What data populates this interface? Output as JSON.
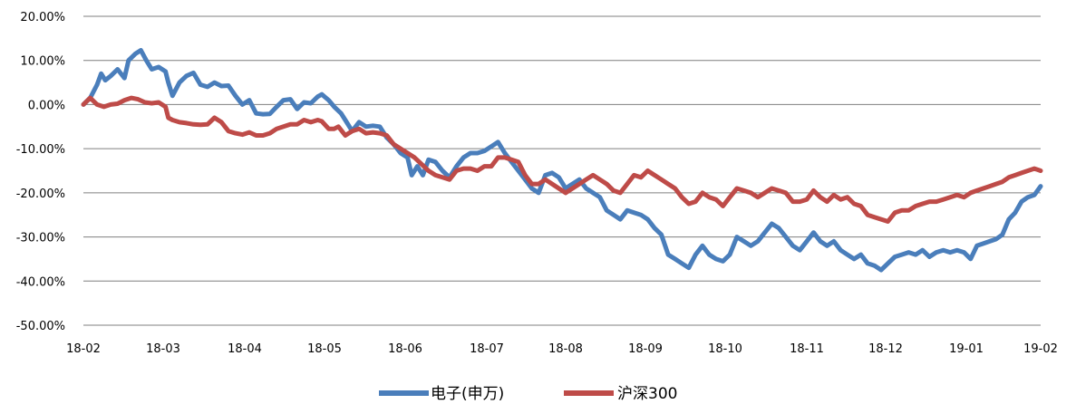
{
  "chart_data": {
    "type": "line",
    "title": "",
    "xlabel": "",
    "ylabel": "",
    "x_ticks": [
      "18-02",
      "18-03",
      "18-04",
      "18-05",
      "18-06",
      "18-07",
      "18-08",
      "18-09",
      "18-10",
      "18-11",
      "18-12",
      "19-01",
      "19-02"
    ],
    "y_ticks": [
      20,
      10,
      0,
      -10,
      -20,
      -30,
      -40,
      -50
    ],
    "y_tick_labels": [
      "20.00%",
      "10.00%",
      "0.00%",
      "-10.00%",
      "-20.00%",
      "-30.00%",
      "-40.00%",
      "-50.00%"
    ],
    "ylim": [
      -50,
      20
    ],
    "y_unit": "%",
    "grid": "horizontal",
    "legend": "bottom-center",
    "series": [
      {
        "name": "电子(申万)",
        "color": "#4a7ebb",
        "points": [
          [
            0,
            0
          ],
          [
            0.05,
            1.5
          ],
          [
            0.1,
            4.5
          ],
          [
            0.13,
            7
          ],
          [
            0.16,
            5.5
          ],
          [
            0.2,
            6.5
          ],
          [
            0.25,
            8
          ],
          [
            0.3,
            6
          ],
          [
            0.33,
            10
          ],
          [
            0.38,
            11.5
          ],
          [
            0.42,
            12.3
          ],
          [
            0.46,
            10
          ],
          [
            0.5,
            8
          ],
          [
            0.55,
            8.5
          ],
          [
            0.6,
            7.5
          ],
          [
            0.62,
            5
          ],
          [
            0.65,
            2
          ],
          [
            0.7,
            5
          ],
          [
            0.75,
            6.5
          ],
          [
            0.8,
            7.2
          ],
          [
            0.85,
            4.5
          ],
          [
            0.9,
            4
          ],
          [
            0.95,
            5
          ],
          [
            1.0,
            4.2
          ],
          [
            1.05,
            4.3
          ],
          [
            1.1,
            2
          ],
          [
            1.15,
            0
          ],
          [
            1.2,
            1
          ],
          [
            1.25,
            -2
          ],
          [
            1.3,
            -2.2
          ],
          [
            1.35,
            -2.1
          ],
          [
            1.4,
            -0.5
          ],
          [
            1.45,
            1
          ],
          [
            1.5,
            1.2
          ],
          [
            1.55,
            -1
          ],
          [
            1.6,
            0.5
          ],
          [
            1.65,
            0.3
          ],
          [
            1.7,
            1.8
          ],
          [
            1.73,
            2.3
          ],
          [
            1.78,
            1
          ],
          [
            1.82,
            -0.5
          ],
          [
            1.87,
            -2
          ],
          [
            1.9,
            -3.5
          ],
          [
            1.95,
            -6
          ],
          [
            2.0,
            -4
          ],
          [
            2.05,
            -5
          ],
          [
            2.1,
            -4.8
          ],
          [
            2.15,
            -5
          ],
          [
            2.2,
            -7.5
          ],
          [
            2.25,
            -9
          ],
          [
            2.3,
            -11
          ],
          [
            2.35,
            -12
          ],
          [
            2.38,
            -16
          ],
          [
            2.42,
            -14
          ],
          [
            2.46,
            -16
          ],
          [
            2.5,
            -12.5
          ],
          [
            2.55,
            -13
          ],
          [
            2.6,
            -15
          ],
          [
            2.65,
            -16.5
          ],
          [
            2.7,
            -14
          ],
          [
            2.75,
            -12
          ],
          [
            2.8,
            -11
          ],
          [
            2.85,
            -11
          ],
          [
            2.9,
            -10.5
          ],
          [
            2.95,
            -9.5
          ],
          [
            3.0,
            -8.5
          ],
          [
            3.05,
            -11
          ],
          [
            3.1,
            -13
          ],
          [
            3.15,
            -15
          ],
          [
            3.2,
            -17
          ],
          [
            3.25,
            -19
          ],
          [
            3.3,
            -20
          ],
          [
            3.35,
            -16
          ],
          [
            3.4,
            -15.5
          ],
          [
            3.45,
            -16.5
          ],
          [
            3.5,
            -19
          ],
          [
            3.55,
            -18
          ],
          [
            3.6,
            -17
          ],
          [
            3.65,
            -19
          ],
          [
            3.7,
            -20
          ],
          [
            3.75,
            -21
          ],
          [
            3.8,
            -24
          ],
          [
            3.85,
            -25
          ],
          [
            3.9,
            -26
          ],
          [
            3.95,
            -24
          ],
          [
            4.0,
            -24.5
          ],
          [
            4.05,
            -25
          ],
          [
            4.1,
            -26
          ],
          [
            4.15,
            -28
          ],
          [
            4.2,
            -29.5
          ],
          [
            4.25,
            -34
          ],
          [
            4.3,
            -35
          ],
          [
            4.35,
            -36
          ],
          [
            4.4,
            -37
          ],
          [
            4.45,
            -34
          ],
          [
            4.5,
            -32
          ],
          [
            4.55,
            -34
          ],
          [
            4.6,
            -35
          ],
          [
            4.65,
            -35.5
          ],
          [
            4.7,
            -34
          ],
          [
            4.75,
            -30
          ],
          [
            4.8,
            -31
          ],
          [
            4.85,
            -32
          ],
          [
            4.9,
            -31
          ],
          [
            4.95,
            -29
          ],
          [
            5.0,
            -27
          ],
          [
            5.05,
            -28
          ],
          [
            5.1,
            -30
          ],
          [
            5.15,
            -32
          ],
          [
            5.2,
            -33
          ],
          [
            5.25,
            -31
          ],
          [
            5.3,
            -29
          ],
          [
            5.35,
            -31
          ],
          [
            5.4,
            -32
          ],
          [
            5.45,
            -31
          ],
          [
            5.5,
            -33
          ],
          [
            5.55,
            -34
          ],
          [
            5.6,
            -35
          ],
          [
            5.65,
            -34
          ],
          [
            5.7,
            -36
          ],
          [
            5.75,
            -36.5
          ],
          [
            5.8,
            -37.5
          ],
          [
            5.85,
            -36
          ],
          [
            5.9,
            -34.5
          ],
          [
            5.95,
            -34
          ],
          [
            6.0,
            -33.5
          ],
          [
            6.05,
            -34
          ],
          [
            6.1,
            -33
          ],
          [
            6.15,
            -34.5
          ],
          [
            6.2,
            -33.5
          ],
          [
            6.25,
            -33
          ],
          [
            6.3,
            -33.5
          ],
          [
            6.35,
            -33
          ],
          [
            6.4,
            -33.5
          ],
          [
            6.45,
            -35
          ],
          [
            6.5,
            -32
          ],
          [
            6.55,
            -31.5
          ],
          [
            6.6,
            -31
          ],
          [
            6.65,
            -30.5
          ],
          [
            6.7,
            -29.5
          ],
          [
            6.75,
            -26
          ],
          [
            6.8,
            -24.5
          ],
          [
            6.85,
            -22
          ],
          [
            6.9,
            -21
          ],
          [
            6.95,
            -20.5
          ],
          [
            7.0,
            -18.5
          ]
        ]
      },
      {
        "name": "沪深300",
        "color": "#be4b48",
        "points": [
          [
            0,
            0
          ],
          [
            0.05,
            1.5
          ],
          [
            0.1,
            0
          ],
          [
            0.15,
            -0.5
          ],
          [
            0.2,
            0
          ],
          [
            0.25,
            0.2
          ],
          [
            0.3,
            1
          ],
          [
            0.35,
            1.5
          ],
          [
            0.4,
            1.2
          ],
          [
            0.45,
            0.5
          ],
          [
            0.5,
            0.3
          ],
          [
            0.55,
            0.5
          ],
          [
            0.6,
            -0.5
          ],
          [
            0.62,
            -3
          ],
          [
            0.65,
            -3.5
          ],
          [
            0.7,
            -4
          ],
          [
            0.75,
            -4.2
          ],
          [
            0.8,
            -4.5
          ],
          [
            0.85,
            -4.6
          ],
          [
            0.9,
            -4.5
          ],
          [
            0.95,
            -3
          ],
          [
            1.0,
            -4
          ],
          [
            1.05,
            -6
          ],
          [
            1.1,
            -6.5
          ],
          [
            1.15,
            -6.8
          ],
          [
            1.2,
            -6.3
          ],
          [
            1.25,
            -7
          ],
          [
            1.3,
            -7
          ],
          [
            1.35,
            -6.5
          ],
          [
            1.4,
            -5.5
          ],
          [
            1.45,
            -5
          ],
          [
            1.5,
            -4.5
          ],
          [
            1.55,
            -4.5
          ],
          [
            1.6,
            -3.5
          ],
          [
            1.65,
            -4
          ],
          [
            1.7,
            -3.5
          ],
          [
            1.73,
            -3.8
          ],
          [
            1.78,
            -5.5
          ],
          [
            1.82,
            -5.5
          ],
          [
            1.85,
            -5
          ],
          [
            1.9,
            -7
          ],
          [
            1.95,
            -6
          ],
          [
            2.0,
            -5.5
          ],
          [
            2.05,
            -6.5
          ],
          [
            2.1,
            -6.3
          ],
          [
            2.15,
            -6.5
          ],
          [
            2.2,
            -7
          ],
          [
            2.25,
            -9
          ],
          [
            2.3,
            -10
          ],
          [
            2.35,
            -11
          ],
          [
            2.4,
            -12
          ],
          [
            2.45,
            -13.5
          ],
          [
            2.5,
            -15
          ],
          [
            2.55,
            -16
          ],
          [
            2.6,
            -16.5
          ],
          [
            2.65,
            -17
          ],
          [
            2.7,
            -15
          ],
          [
            2.75,
            -14.5
          ],
          [
            2.8,
            -14.5
          ],
          [
            2.85,
            -15
          ],
          [
            2.9,
            -14
          ],
          [
            2.95,
            -14
          ],
          [
            3.0,
            -12
          ],
          [
            3.05,
            -12
          ],
          [
            3.1,
            -12.5
          ],
          [
            3.15,
            -13
          ],
          [
            3.2,
            -16
          ],
          [
            3.25,
            -18
          ],
          [
            3.3,
            -18
          ],
          [
            3.35,
            -17
          ],
          [
            3.4,
            -18
          ],
          [
            3.45,
            -19
          ],
          [
            3.5,
            -20
          ],
          [
            3.55,
            -19
          ],
          [
            3.6,
            -18
          ],
          [
            3.65,
            -17
          ],
          [
            3.7,
            -16
          ],
          [
            3.75,
            -17
          ],
          [
            3.8,
            -18
          ],
          [
            3.85,
            -19.5
          ],
          [
            3.9,
            -20
          ],
          [
            3.95,
            -18
          ],
          [
            4.0,
            -16
          ],
          [
            4.05,
            -16.5
          ],
          [
            4.1,
            -15
          ],
          [
            4.15,
            -16
          ],
          [
            4.2,
            -17
          ],
          [
            4.25,
            -18
          ],
          [
            4.3,
            -19
          ],
          [
            4.35,
            -21
          ],
          [
            4.4,
            -22.5
          ],
          [
            4.45,
            -22
          ],
          [
            4.5,
            -20
          ],
          [
            4.55,
            -21
          ],
          [
            4.6,
            -21.5
          ],
          [
            4.65,
            -23
          ],
          [
            4.7,
            -21
          ],
          [
            4.75,
            -19
          ],
          [
            4.8,
            -19.5
          ],
          [
            4.85,
            -20
          ],
          [
            4.9,
            -21
          ],
          [
            4.95,
            -20
          ],
          [
            5.0,
            -19
          ],
          [
            5.05,
            -19.5
          ],
          [
            5.1,
            -20
          ],
          [
            5.15,
            -22
          ],
          [
            5.2,
            -22
          ],
          [
            5.25,
            -21.5
          ],
          [
            5.3,
            -19.5
          ],
          [
            5.35,
            -21
          ],
          [
            5.4,
            -22
          ],
          [
            5.45,
            -20.5
          ],
          [
            5.5,
            -21.5
          ],
          [
            5.55,
            -21
          ],
          [
            5.6,
            -22.5
          ],
          [
            5.65,
            -23
          ],
          [
            5.7,
            -25
          ],
          [
            5.75,
            -25.5
          ],
          [
            5.8,
            -26
          ],
          [
            5.85,
            -26.5
          ],
          [
            5.9,
            -24.5
          ],
          [
            5.95,
            -24
          ],
          [
            6.0,
            -24
          ],
          [
            6.05,
            -23
          ],
          [
            6.1,
            -22.5
          ],
          [
            6.15,
            -22
          ],
          [
            6.2,
            -22
          ],
          [
            6.25,
            -21.5
          ],
          [
            6.3,
            -21
          ],
          [
            6.35,
            -20.5
          ],
          [
            6.4,
            -21
          ],
          [
            6.45,
            -20
          ],
          [
            6.5,
            -19.5
          ],
          [
            6.55,
            -19
          ],
          [
            6.6,
            -18.5
          ],
          [
            6.65,
            -18
          ],
          [
            6.7,
            -17.5
          ],
          [
            6.75,
            -16.5
          ],
          [
            6.8,
            -16
          ],
          [
            6.85,
            -15.5
          ],
          [
            6.9,
            -15
          ],
          [
            6.95,
            -14.5
          ],
          [
            7.0,
            -15
          ]
        ]
      }
    ]
  }
}
